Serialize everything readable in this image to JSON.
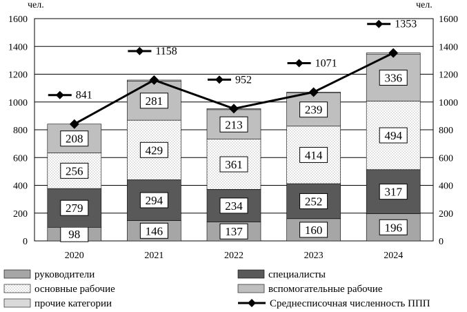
{
  "chart_data": {
    "type": "bar",
    "stacked": true,
    "categories": [
      "2020",
      "2021",
      "2022",
      "2023",
      "2024"
    ],
    "y_unit_left": "чел.",
    "y_unit_right": "чел.",
    "ylim": [
      0,
      1600
    ],
    "yticks": [
      0,
      200,
      400,
      600,
      800,
      1000,
      1200,
      1400,
      1600
    ],
    "grid": true,
    "legend_position": "bottom",
    "series": [
      {
        "name": "руководители",
        "values": [
          98,
          146,
          137,
          160,
          196
        ],
        "color": "#a6a6a6",
        "pattern": "solid"
      },
      {
        "name": "специалисты",
        "values": [
          279,
          294,
          234,
          252,
          317
        ],
        "color": "#595959",
        "pattern": "solid"
      },
      {
        "name": "основные рабочие",
        "values": [
          256,
          429,
          361,
          414,
          494
        ],
        "color": "#ffffff",
        "pattern": "dotted"
      },
      {
        "name": "вспомогательные рабочие",
        "values": [
          208,
          281,
          213,
          239,
          336
        ],
        "color": "#bfbfbf",
        "pattern": "solid"
      },
      {
        "name": "прочие категории",
        "values": [
          0,
          8,
          7,
          6,
          10
        ],
        "color": "#d9d9d9",
        "pattern": "solid"
      }
    ],
    "line_series": {
      "name": "Среднесписочная численность ППП",
      "values": [
        841,
        1158,
        952,
        1071,
        1353
      ],
      "color": "#000000",
      "marker": "diamond"
    }
  }
}
